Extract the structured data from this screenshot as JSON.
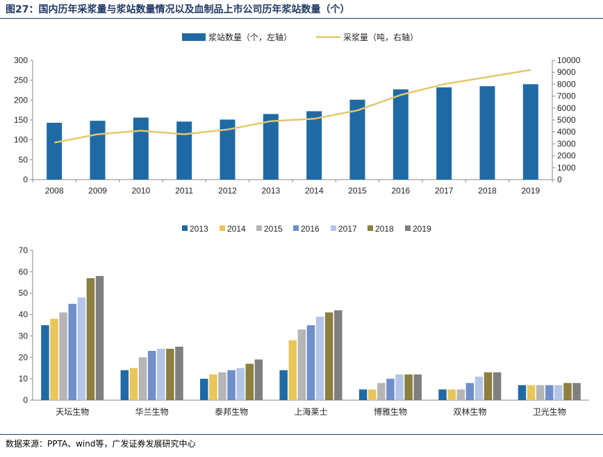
{
  "header": {
    "figure_title": "图27：国内历年采浆量与浆站数量情况以及血制品上市公司历年浆站数量（个）"
  },
  "footer": {
    "source_text": "数据来源：PPTA、wind等，广发证券发展研究中心"
  },
  "colors": {
    "title": "#1f3864",
    "bar_primary": "#1f6aa5",
    "line_primary": "#e3c76b",
    "series": [
      "#1f6aa5",
      "#e8c65a",
      "#b5b5b5",
      "#6f8fcb",
      "#b4c6e7",
      "#8c7f3f",
      "#7f7f7f"
    ]
  },
  "chart_data": [
    {
      "type": "bar+line",
      "title": "",
      "categories": [
        "2008",
        "2009",
        "2010",
        "2011",
        "2012",
        "2013",
        "2014",
        "2015",
        "2016",
        "2017",
        "2018",
        "2019"
      ],
      "series": [
        {
          "name": "浆站数量（个，左轴）",
          "kind": "bar",
          "axis": "left",
          "values": [
            143,
            148,
            156,
            146,
            151,
            165,
            172,
            201,
            227,
            232,
            235,
            240
          ]
        },
        {
          "name": "采浆量（吨，右轴）",
          "kind": "line",
          "axis": "right",
          "values": [
            3100,
            3800,
            4100,
            3800,
            4200,
            4900,
            5100,
            5800,
            7100,
            8000,
            8600,
            9200
          ]
        }
      ],
      "y_left": {
        "min": 0,
        "max": 300,
        "ticks": [
          0,
          50,
          100,
          150,
          200,
          250,
          300
        ]
      },
      "y_right": {
        "min": 0,
        "max": 10000,
        "ticks": [
          0,
          1000,
          2000,
          3000,
          4000,
          5000,
          6000,
          7000,
          8000,
          9000,
          10000
        ]
      },
      "grid": false,
      "legend_position": "top"
    },
    {
      "type": "bar",
      "title": "",
      "categories": [
        "天坛生物",
        "华兰生物",
        "泰邦生物",
        "上海莱士",
        "博雅生物",
        "双林生物",
        "卫光生物"
      ],
      "series": [
        {
          "name": "2013",
          "values": [
            35,
            14,
            10,
            14,
            5,
            5,
            7
          ]
        },
        {
          "name": "2014",
          "values": [
            38,
            15,
            12,
            28,
            5,
            5,
            7
          ]
        },
        {
          "name": "2015",
          "values": [
            41,
            20,
            13,
            33,
            8,
            5,
            7
          ]
        },
        {
          "name": "2016",
          "values": [
            45,
            23,
            14,
            35,
            10,
            8,
            7
          ]
        },
        {
          "name": "2017",
          "values": [
            48,
            24,
            15,
            39,
            12,
            11,
            7
          ]
        },
        {
          "name": "2018",
          "values": [
            57,
            24,
            17,
            41,
            12,
            13,
            8
          ]
        },
        {
          "name": "2019",
          "values": [
            58,
            25,
            19,
            42,
            12,
            13,
            8
          ]
        }
      ],
      "y": {
        "min": 0,
        "max": 70,
        "ticks": [
          0,
          10,
          20,
          30,
          40,
          50,
          60,
          70
        ]
      },
      "grid": false,
      "legend_position": "top"
    }
  ]
}
